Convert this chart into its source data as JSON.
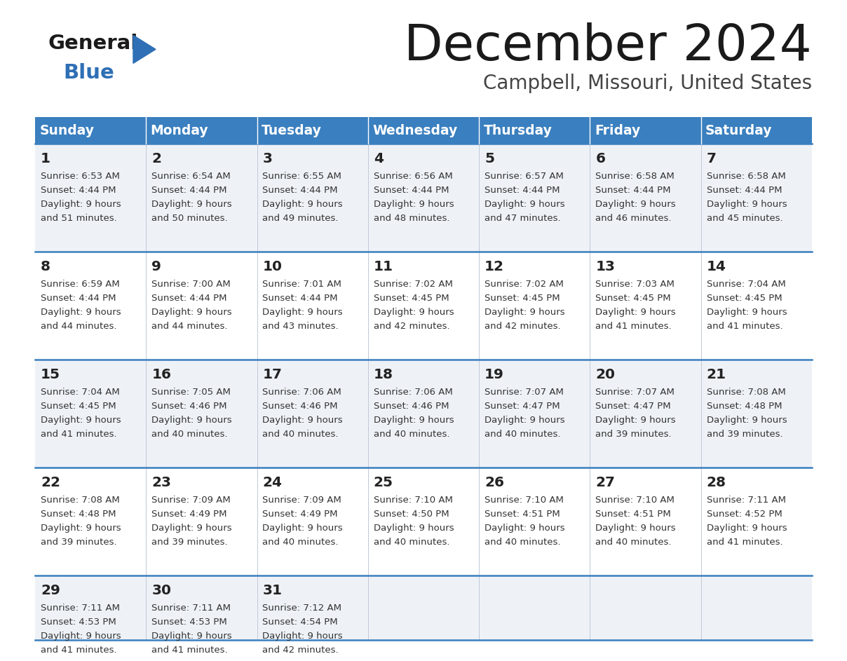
{
  "title": "December 2024",
  "subtitle": "Campbell, Missouri, United States",
  "days_of_week": [
    "Sunday",
    "Monday",
    "Tuesday",
    "Wednesday",
    "Thursday",
    "Friday",
    "Saturday"
  ],
  "header_bg": "#3a7fbf",
  "header_text": "#ffffff",
  "row_bg_light": "#eef2f7",
  "row_bg_white": "#ffffff",
  "cell_border_color": "#3a7fbf",
  "day_num_color": "#222222",
  "info_text_color": "#333333",
  "title_color": "#1a1a1a",
  "subtitle_color": "#444444",
  "logo_general_color": "#1a1a1a",
  "logo_blue_color": "#2e6fb5",
  "weeks": [
    [
      {
        "day": 1,
        "sunrise": "6:53 AM",
        "sunset": "4:44 PM",
        "daylight": "9 hours and 51 minutes"
      },
      {
        "day": 2,
        "sunrise": "6:54 AM",
        "sunset": "4:44 PM",
        "daylight": "9 hours and 50 minutes"
      },
      {
        "day": 3,
        "sunrise": "6:55 AM",
        "sunset": "4:44 PM",
        "daylight": "9 hours and 49 minutes"
      },
      {
        "day": 4,
        "sunrise": "6:56 AM",
        "sunset": "4:44 PM",
        "daylight": "9 hours and 48 minutes"
      },
      {
        "day": 5,
        "sunrise": "6:57 AM",
        "sunset": "4:44 PM",
        "daylight": "9 hours and 47 minutes"
      },
      {
        "day": 6,
        "sunrise": "6:58 AM",
        "sunset": "4:44 PM",
        "daylight": "9 hours and 46 minutes"
      },
      {
        "day": 7,
        "sunrise": "6:58 AM",
        "sunset": "4:44 PM",
        "daylight": "9 hours and 45 minutes"
      }
    ],
    [
      {
        "day": 8,
        "sunrise": "6:59 AM",
        "sunset": "4:44 PM",
        "daylight": "9 hours and 44 minutes"
      },
      {
        "day": 9,
        "sunrise": "7:00 AM",
        "sunset": "4:44 PM",
        "daylight": "9 hours and 44 minutes"
      },
      {
        "day": 10,
        "sunrise": "7:01 AM",
        "sunset": "4:44 PM",
        "daylight": "9 hours and 43 minutes"
      },
      {
        "day": 11,
        "sunrise": "7:02 AM",
        "sunset": "4:45 PM",
        "daylight": "9 hours and 42 minutes"
      },
      {
        "day": 12,
        "sunrise": "7:02 AM",
        "sunset": "4:45 PM",
        "daylight": "9 hours and 42 minutes"
      },
      {
        "day": 13,
        "sunrise": "7:03 AM",
        "sunset": "4:45 PM",
        "daylight": "9 hours and 41 minutes"
      },
      {
        "day": 14,
        "sunrise": "7:04 AM",
        "sunset": "4:45 PM",
        "daylight": "9 hours and 41 minutes"
      }
    ],
    [
      {
        "day": 15,
        "sunrise": "7:04 AM",
        "sunset": "4:45 PM",
        "daylight": "9 hours and 41 minutes"
      },
      {
        "day": 16,
        "sunrise": "7:05 AM",
        "sunset": "4:46 PM",
        "daylight": "9 hours and 40 minutes"
      },
      {
        "day": 17,
        "sunrise": "7:06 AM",
        "sunset": "4:46 PM",
        "daylight": "9 hours and 40 minutes"
      },
      {
        "day": 18,
        "sunrise": "7:06 AM",
        "sunset": "4:46 PM",
        "daylight": "9 hours and 40 minutes"
      },
      {
        "day": 19,
        "sunrise": "7:07 AM",
        "sunset": "4:47 PM",
        "daylight": "9 hours and 40 minutes"
      },
      {
        "day": 20,
        "sunrise": "7:07 AM",
        "sunset": "4:47 PM",
        "daylight": "9 hours and 39 minutes"
      },
      {
        "day": 21,
        "sunrise": "7:08 AM",
        "sunset": "4:48 PM",
        "daylight": "9 hours and 39 minutes"
      }
    ],
    [
      {
        "day": 22,
        "sunrise": "7:08 AM",
        "sunset": "4:48 PM",
        "daylight": "9 hours and 39 minutes"
      },
      {
        "day": 23,
        "sunrise": "7:09 AM",
        "sunset": "4:49 PM",
        "daylight": "9 hours and 39 minutes"
      },
      {
        "day": 24,
        "sunrise": "7:09 AM",
        "sunset": "4:49 PM",
        "daylight": "9 hours and 40 minutes"
      },
      {
        "day": 25,
        "sunrise": "7:10 AM",
        "sunset": "4:50 PM",
        "daylight": "9 hours and 40 minutes"
      },
      {
        "day": 26,
        "sunrise": "7:10 AM",
        "sunset": "4:51 PM",
        "daylight": "9 hours and 40 minutes"
      },
      {
        "day": 27,
        "sunrise": "7:10 AM",
        "sunset": "4:51 PM",
        "daylight": "9 hours and 40 minutes"
      },
      {
        "day": 28,
        "sunrise": "7:11 AM",
        "sunset": "4:52 PM",
        "daylight": "9 hours and 41 minutes"
      }
    ],
    [
      {
        "day": 29,
        "sunrise": "7:11 AM",
        "sunset": "4:53 PM",
        "daylight": "9 hours and 41 minutes"
      },
      {
        "day": 30,
        "sunrise": "7:11 AM",
        "sunset": "4:53 PM",
        "daylight": "9 hours and 41 minutes"
      },
      {
        "day": 31,
        "sunrise": "7:12 AM",
        "sunset": "4:54 PM",
        "daylight": "9 hours and 42 minutes"
      },
      null,
      null,
      null,
      null
    ]
  ]
}
